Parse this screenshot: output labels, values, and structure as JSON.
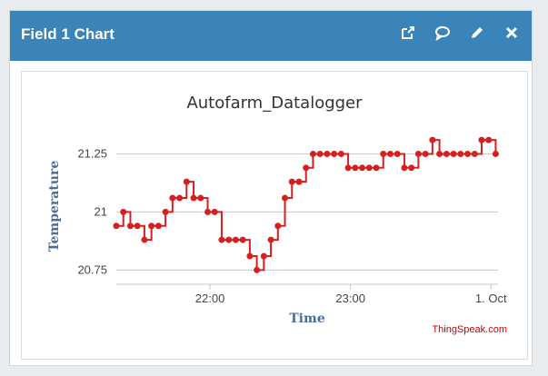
{
  "widget": {
    "title": "Field 1 Chart",
    "actions": [
      {
        "name": "open-external-icon",
        "label": "open"
      },
      {
        "name": "comment-icon",
        "label": "comment"
      },
      {
        "name": "edit-pencil-icon",
        "label": "edit"
      },
      {
        "name": "close-icon",
        "label": "close"
      }
    ]
  },
  "colors": {
    "header": "#3a84b9",
    "series": "#d62020",
    "axis_title": "#4a6d9a",
    "credit": "#cc0000"
  },
  "credit": "ThingSpeak.com",
  "chart_data": {
    "type": "line",
    "step": true,
    "title": "Autofarm_Datalogger",
    "xlabel": "Time",
    "ylabel": "Temperature",
    "ylim": [
      20.72,
      21.33
    ],
    "yticks": [
      20.75,
      21,
      21.25
    ],
    "ytick_labels": [
      "20.75",
      "21",
      "21.25"
    ],
    "xlim": [
      "21:20",
      "24:03"
    ],
    "xticks": [
      "22:00",
      "23:00",
      "24:00"
    ],
    "xtick_labels": [
      "22:00",
      "23:00",
      "1. Oct"
    ],
    "grid": true,
    "series": [
      {
        "x": [
          "21:20",
          "21:23",
          "21:26",
          "21:29",
          "21:32",
          "21:35",
          "21:38",
          "21:41",
          "21:44",
          "21:47",
          "21:50",
          "21:53",
          "21:56",
          "21:59",
          "22:02",
          "22:05",
          "22:08",
          "22:11",
          "22:14",
          "22:17",
          "22:20",
          "22:23",
          "22:26",
          "22:29",
          "22:32",
          "22:35",
          "22:38",
          "22:41",
          "22:44",
          "22:47",
          "22:50",
          "22:53",
          "22:56",
          "22:59",
          "23:02",
          "23:05",
          "23:08",
          "23:11",
          "23:14",
          "23:17",
          "23:20",
          "23:23",
          "23:26",
          "23:29",
          "23:32",
          "23:35",
          "23:38",
          "23:41",
          "23:44",
          "23:47",
          "23:50",
          "23:53",
          "23:56",
          "23:59",
          "24:02"
        ],
        "y": [
          20.94,
          21.0,
          20.94,
          20.94,
          20.88,
          20.94,
          20.94,
          21.0,
          21.06,
          21.06,
          21.13,
          21.06,
          21.06,
          21.0,
          21.0,
          20.88,
          20.88,
          20.88,
          20.88,
          20.81,
          20.75,
          20.81,
          20.88,
          20.94,
          21.06,
          21.13,
          21.13,
          21.19,
          21.25,
          21.25,
          21.25,
          21.25,
          21.25,
          21.19,
          21.19,
          21.19,
          21.19,
          21.19,
          21.25,
          21.25,
          21.25,
          21.19,
          21.19,
          21.25,
          21.25,
          21.31,
          21.25,
          21.25,
          21.25,
          21.25,
          21.25,
          21.25,
          21.31,
          21.31,
          21.25
        ]
      }
    ]
  }
}
